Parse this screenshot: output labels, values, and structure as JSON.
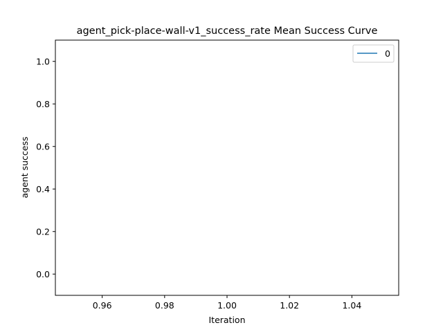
{
  "chart_data": {
    "type": "line",
    "title": "agent_pick-place-wall-v1_success_rate Mean Success Curve",
    "xlabel": "Iteration",
    "ylabel": "agent success",
    "xlim": [
      0.945,
      1.055
    ],
    "ylim": [
      -0.1,
      1.1
    ],
    "xticks": [
      0.96,
      0.98,
      1.0,
      1.02,
      1.04
    ],
    "xtick_labels": [
      "0.96",
      "0.98",
      "1.00",
      "1.02",
      "1.04"
    ],
    "yticks": [
      0.0,
      0.2,
      0.4,
      0.6,
      0.8,
      1.0
    ],
    "ytick_labels": [
      "0.0",
      "0.2",
      "0.4",
      "0.6",
      "0.8",
      "1.0"
    ],
    "grid": false,
    "legend_position": "top-right",
    "series": [
      {
        "name": "0",
        "color": "#1f77b4",
        "x": [],
        "y": []
      }
    ]
  }
}
